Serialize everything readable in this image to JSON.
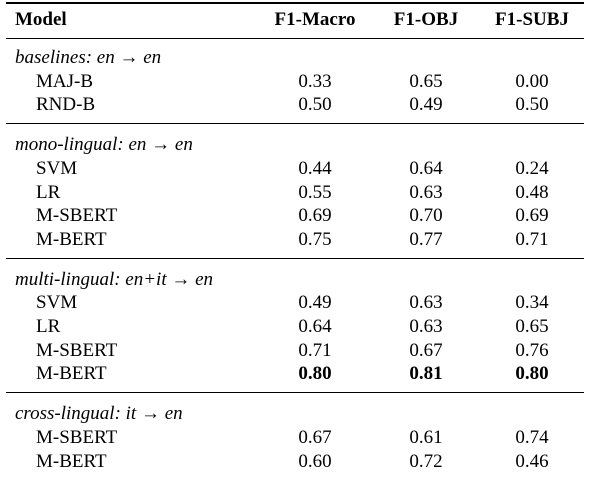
{
  "table": {
    "header": [
      "Model",
      "F1-Macro",
      "F1-OBJ",
      "F1-SUBJ"
    ],
    "groups": [
      {
        "title": "baselines: en → en",
        "rows": [
          [
            "MAJ-B",
            "0.33",
            "0.65",
            "0.00"
          ],
          [
            "RND-B",
            "0.50",
            "0.49",
            "0.50"
          ]
        ]
      },
      {
        "title": "mono-lingual: en → en",
        "rows": [
          [
            "SVM",
            "0.44",
            "0.64",
            "0.24"
          ],
          [
            "LR",
            "0.55",
            "0.63",
            "0.48"
          ],
          [
            "M-SBERT",
            "0.69",
            "0.70",
            "0.69"
          ],
          [
            "M-BERT",
            "0.75",
            "0.77",
            "0.71"
          ]
        ]
      },
      {
        "title": "multi-lingual: en+it → en",
        "rows": [
          [
            "SVM",
            "0.49",
            "0.63",
            "0.34"
          ],
          [
            "LR",
            "0.64",
            "0.63",
            "0.65"
          ],
          [
            "M-SBERT",
            "0.71",
            "0.67",
            "0.76"
          ],
          [
            "M-BERT",
            "0.80",
            "0.81",
            "0.80"
          ]
        ]
      },
      {
        "title": "cross-lingual: it → en",
        "rows": [
          [
            "M-SBERT",
            "0.67",
            "0.61",
            "0.74"
          ],
          [
            "M-BERT",
            "0.60",
            "0.72",
            "0.46"
          ]
        ]
      }
    ]
  }
}
